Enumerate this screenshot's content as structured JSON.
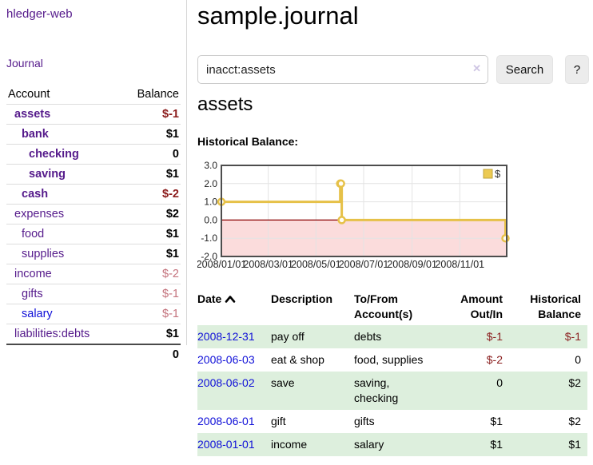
{
  "app": {
    "title": "hledger-web"
  },
  "sidebar": {
    "journal_link": "Journal",
    "accounts": {
      "header_account": "Account",
      "header_balance": "Balance",
      "rows": [
        {
          "name": "assets",
          "balance": "$-1",
          "depth": 0,
          "bold": true,
          "balance_class": "neg-strong",
          "link_color": "purple"
        },
        {
          "name": "bank",
          "balance": "$1",
          "depth": 1,
          "bold": true,
          "balance_class": "pos",
          "link_color": "purple"
        },
        {
          "name": "checking",
          "balance": "0",
          "depth": 2,
          "bold": true,
          "balance_class": "pos",
          "link_color": "purple"
        },
        {
          "name": "saving",
          "balance": "$1",
          "depth": 2,
          "bold": true,
          "balance_class": "pos",
          "link_color": "purple"
        },
        {
          "name": "cash",
          "balance": "$-2",
          "depth": 1,
          "bold": true,
          "balance_class": "neg-strong",
          "link_color": "purple"
        },
        {
          "name": "expenses",
          "balance": "$2",
          "depth": 0,
          "bold": false,
          "balance_class": "pos",
          "link_color": "purple"
        },
        {
          "name": "food",
          "balance": "$1",
          "depth": 1,
          "bold": false,
          "balance_class": "pos",
          "link_color": "purple"
        },
        {
          "name": "supplies",
          "balance": "$1",
          "depth": 1,
          "bold": false,
          "balance_class": "pos",
          "link_color": "purple"
        },
        {
          "name": "income",
          "balance": "$-2",
          "depth": 0,
          "bold": false,
          "balance_class": "neg-soft",
          "link_color": "purple"
        },
        {
          "name": "gifts",
          "balance": "$-1",
          "depth": 1,
          "bold": false,
          "balance_class": "neg-soft",
          "link_color": "purple"
        },
        {
          "name": "salary",
          "balance": "$-1",
          "depth": 1,
          "bold": false,
          "balance_class": "neg-soft",
          "link_color": "blue"
        },
        {
          "name": "liabilities:debts",
          "balance": "$1",
          "depth": 0,
          "bold": false,
          "balance_class": "pos",
          "link_color": "purple"
        }
      ],
      "total": "0"
    }
  },
  "main": {
    "title": "sample.journal",
    "search": {
      "value": "inacct:assets",
      "clear_label": "✕",
      "button": "Search",
      "help": "?"
    },
    "heading": "assets",
    "chart_title": "Historical Balance:"
  },
  "chart_data": {
    "type": "line",
    "title": "Historical Balance",
    "legend": {
      "label": "$",
      "position": "top-right"
    },
    "x_range": [
      "2008-01-01",
      "2008-12-31"
    ],
    "ylim": [
      -2,
      3
    ],
    "y_ticks": [
      "3.0",
      "2.0",
      "1.0",
      "0.0",
      "-1.0",
      "-2.0"
    ],
    "x_ticks": [
      {
        "date": "2008-01-01",
        "label": "2008/01/01"
      },
      {
        "date": "2008-03-01",
        "label": "2008/03/01"
      },
      {
        "date": "2008-05-01",
        "label": "2008/05/01"
      },
      {
        "date": "2008-07-01",
        "label": "2008/07/01"
      },
      {
        "date": "2008-09-01",
        "label": "2008/09/01"
      },
      {
        "date": "2008-11-01",
        "label": "2008/11/01"
      }
    ],
    "series": [
      {
        "name": "$",
        "step": true,
        "color": "#e6c148",
        "points": [
          {
            "date": "2008-01-01",
            "value": 1
          },
          {
            "date": "2008-06-01",
            "value": 2
          },
          {
            "date": "2008-06-02",
            "value": 2
          },
          {
            "date": "2008-06-03",
            "value": 0
          },
          {
            "date": "2008-12-31",
            "value": -1
          }
        ]
      }
    ],
    "grid": true,
    "negative_region_color": "#fbdcdc",
    "zero_line_color": "#8b0000"
  },
  "register": {
    "headers": {
      "date": "Date",
      "description": "Description",
      "tofrom": "To/From Account(s)",
      "amount": "Amount Out/In",
      "balance": "Historical Balance"
    },
    "rows": [
      {
        "date": "2008-12-31",
        "description": "pay off",
        "tofrom": "debts",
        "amount": "$-1",
        "amount_negative": true,
        "balance": "$-1",
        "balance_negative": true
      },
      {
        "date": "2008-06-03",
        "description": "eat & shop",
        "tofrom": "food, supplies",
        "amount": "$-2",
        "amount_negative": true,
        "balance": "0",
        "balance_negative": false
      },
      {
        "date": "2008-06-02",
        "description": "save",
        "tofrom": "saving, checking",
        "amount": "0",
        "amount_negative": false,
        "balance": "$2",
        "balance_negative": false
      },
      {
        "date": "2008-06-01",
        "description": "gift",
        "tofrom": "gifts",
        "amount": "$1",
        "amount_negative": false,
        "balance": "$2",
        "balance_negative": false
      },
      {
        "date": "2008-01-01",
        "description": "income",
        "tofrom": "salary",
        "amount": "$1",
        "amount_negative": false,
        "balance": "$1",
        "balance_negative": false
      }
    ]
  },
  "colors": {
    "link_purple": "#551a8b",
    "link_blue": "#0f0fd8",
    "negative_strong": "#8b1b1b",
    "negative_soft": "#c4737d",
    "row_stripe_green": "#ddefdd",
    "chart_line_gold": "#e6c148",
    "chart_negative_pink": "#fbdcdc",
    "chart_zero_line": "#8b0000"
  }
}
